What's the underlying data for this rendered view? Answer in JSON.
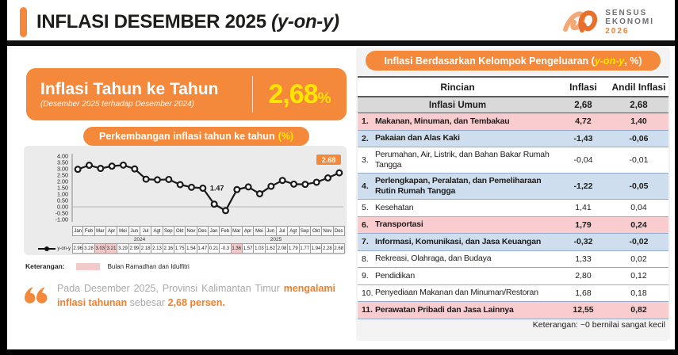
{
  "header": {
    "title_main": "INFLASI DESEMBER 2025 ",
    "title_suffix": "(y-on-y)",
    "logo": {
      "line1": "SENSUS",
      "line2": "EKONOMI",
      "line3": "2026"
    }
  },
  "summary_box": {
    "title": "Inflasi Tahun ke Tahun",
    "subtitle": "(Desember 2025 terhadap Desember 2024)",
    "value": "2,68",
    "unit": "%"
  },
  "chart_section": {
    "pill_text": "Perkembangan inflasi tahun ke tahun",
    "pill_unit": "(%)",
    "legend_label": "Keterangan:",
    "legend_text": "Bulan Ramadhan dan Idulfitri"
  },
  "quote": {
    "part1": "Pada Desember 2025, Provinsi Kalimantan Timur ",
    "highlight1": "mengalami inflasi tahunan",
    "part2": " sebesar ",
    "highlight2": "2,68 persen",
    "part3": "."
  },
  "table_section": {
    "pill_pre": "Inflasi Berdasarkan Kelompok Pengeluaran (",
    "pill_em": "y-on-y",
    "pill_post": ", %)",
    "columns": [
      "Rincian",
      "Inflasi",
      "Andil Inflasi"
    ],
    "summary_row": {
      "label": "Inflasi Umum",
      "inflasi": "2,68",
      "andil": "2,68"
    },
    "footnote": "Keterangan: ~0 bernilai sangat kecil"
  },
  "chart_data": [
    {
      "type": "line",
      "title": "Perkembangan inflasi tahun ke tahun (%)",
      "series_name": "y-on-y",
      "months": [
        "Jan",
        "Feb",
        "Mar",
        "Apr",
        "Mei",
        "Jun",
        "Jul",
        "Agt",
        "Sep",
        "Okt",
        "Nov",
        "Des",
        "Jan",
        "Feb",
        "Mar",
        "Apr",
        "Mei",
        "Jun",
        "Jul",
        "Agt",
        "Sep",
        "Okt",
        "Nov",
        "Des"
      ],
      "years": [
        "2024",
        "2025"
      ],
      "values": [
        2.96,
        3.28,
        3.03,
        3.21,
        3.29,
        2.99,
        2.18,
        2.13,
        2.16,
        1.75,
        1.54,
        1.47,
        0.21,
        -0.3,
        1.36,
        1.57,
        1.03,
        1.62,
        2.08,
        1.79,
        1.77,
        1.94,
        2.28,
        2.68
      ],
      "value_labels": [
        "2.96",
        "3.28",
        "3.03",
        "3.21",
        "3.29",
        "2.99",
        "2.18",
        "2.13",
        "2.16",
        "1.75",
        "1.54",
        "1.47",
        "0.21",
        "-0.3",
        "1.36",
        "1.57",
        "1.03",
        "1.62",
        "2.08",
        "1.79",
        "1.77",
        "1.94",
        "2.28",
        "2.68"
      ],
      "highlight_indices": [
        2,
        3,
        14
      ],
      "highlight_meaning": "Bulan Ramadhan dan Idulfitri",
      "ylim": [
        -1.0,
        4.0
      ],
      "ytick_step": 0.5,
      "annotation_text": "1.47",
      "annotation_index": 11,
      "badge_text": "2.68",
      "badge_index": 23
    },
    {
      "type": "table",
      "title": "Inflasi Berdasarkan Kelompok Pengeluaran (y-on-y, %)",
      "columns": [
        "Rincian",
        "Inflasi",
        "Andil Inflasi"
      ],
      "rows": [
        {
          "no": "1.",
          "label": "Makanan, Minuman, dan Tembakau",
          "inflasi": "4,72",
          "andil": "1,40",
          "style": "pink",
          "bold": true,
          "lines": 1
        },
        {
          "no": "2.",
          "label": "Pakaian dan Alas Kaki",
          "inflasi": "-1,43",
          "andil": "-0,06",
          "style": "blue",
          "bold": true,
          "lines": 1
        },
        {
          "no": "3.",
          "label": "Perumahan, Air, Listrik, dan Bahan Bakar Rumah Tangga",
          "inflasi": "-0,04",
          "andil": "-0,01",
          "style": "white",
          "bold": false,
          "lines": 2
        },
        {
          "no": "4.",
          "label": "Perlengkapan, Peralatan, dan Pemeliharaan Rutin Rumah Tangga",
          "inflasi": "-1,22",
          "andil": "-0,05",
          "style": "blue",
          "bold": true,
          "lines": 2
        },
        {
          "no": "5.",
          "label": "Kesehatan",
          "inflasi": "1,41",
          "andil": "0,04",
          "style": "white",
          "bold": false,
          "lines": 1
        },
        {
          "no": "6.",
          "label": "Transportasi",
          "inflasi": "1,79",
          "andil": "0,24",
          "style": "pink",
          "bold": true,
          "lines": 1
        },
        {
          "no": "7.",
          "label": "Informasi, Komunikasi, dan Jasa Keuangan",
          "inflasi": "-0,32",
          "andil": "-0,02",
          "style": "blue",
          "bold": true,
          "lines": 1
        },
        {
          "no": "8.",
          "label": "Rekreasi, Olahraga, dan Budaya",
          "inflasi": "1,33",
          "andil": "0,02",
          "style": "white",
          "bold": false,
          "lines": 1
        },
        {
          "no": "9.",
          "label": "Pendidikan",
          "inflasi": "2,80",
          "andil": "0,12",
          "style": "white",
          "bold": false,
          "lines": 1
        },
        {
          "no": "10.",
          "label": "Penyediaan Makanan dan Minuman/Restoran",
          "inflasi": "1,68",
          "andil": "0,18",
          "style": "white",
          "bold": false,
          "lines": 1
        },
        {
          "no": "11.",
          "label": "Perawatan Pribadi dan Jasa Lainnya",
          "inflasi": "12,55",
          "andil": "0,82",
          "style": "pink",
          "bold": true,
          "lines": 1
        }
      ]
    }
  ],
  "colors": {
    "orange": "#F5893B",
    "orange_text": "#F07F2D",
    "yellow": "#FFE600",
    "pink_row": "#F9CDD0",
    "blue_row": "#CFDEEE",
    "gray_row": "#D9D9D9",
    "highlight_pink": "#F3CACA"
  }
}
